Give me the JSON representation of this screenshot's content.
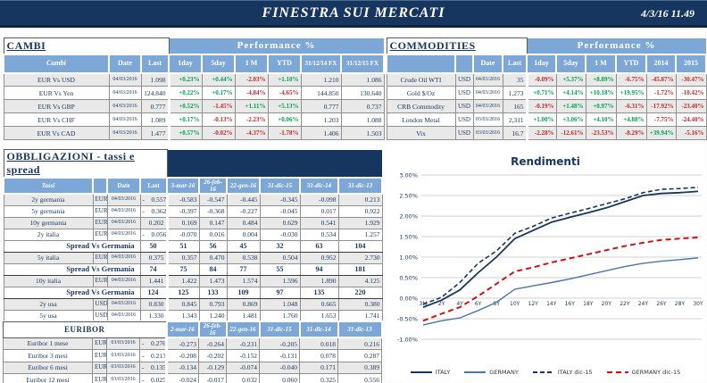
{
  "header": {
    "title": "FINESTRA SUI MERCATI",
    "datetime": "4/3/16 11.49"
  },
  "colors": {
    "navy": "#17365d",
    "titlebar": "#16365f",
    "header_blue": "#7da7d6",
    "row_shade": "#e9e9e9",
    "positive": "#00a050",
    "negative": "#c22727",
    "grid": "#d0d0d0",
    "germany_blue": "#4a76a8",
    "red_line": "#cc1414"
  },
  "cambi": {
    "title": "CAMBI",
    "perf_header": "Performance  %",
    "columns": [
      "Cambi",
      "Date",
      "Last",
      "1day",
      "5day",
      "1 M",
      "YTD",
      "31/12/14 FX",
      "31/12/15  FX"
    ],
    "rows": [
      {
        "name": "EUR Vs USD",
        "date": "04/03/2016",
        "last": "1.098",
        "perf": [
          "+0.23%",
          "+0.44%",
          "-2.03%",
          "+1.10%"
        ],
        "fx14": "1.210",
        "fx15": "1.086"
      },
      {
        "name": "EUR Vs Yen",
        "date": "04/03/2016",
        "last": "124.840",
        "perf": [
          "+0.22%",
          "+0.17%",
          "-4.84%",
          "-4.65%"
        ],
        "fx14": "144.850",
        "fx15": "130.640"
      },
      {
        "name": "EUR Vs GBP",
        "date": "04/03/2016",
        "last": "0.777",
        "perf": [
          "+0.52%",
          "-1.45%",
          "+1.11%",
          "+5.13%"
        ],
        "fx14": "0.777",
        "fx15": "0.737"
      },
      {
        "name": "EUR Vs CHF",
        "date": "04/03/2016",
        "last": "1.089",
        "perf": [
          "+0.17%",
          "-0.13%",
          "-2.23%",
          "+0.06%"
        ],
        "fx14": "1.203",
        "fx15": "1.088"
      },
      {
        "name": "EUR Vs CAD",
        "date": "04/03/2016",
        "last": "1.477",
        "perf": [
          "+0.57%",
          "-0.02%",
          "-4.37%",
          "-1.78%"
        ],
        "fx14": "1.406",
        "fx15": "1.503"
      }
    ]
  },
  "commodities": {
    "title": "COMMODITIES",
    "perf_header": "Performance  %",
    "columns": [
      "Date",
      "Last",
      "1day",
      "5day",
      "1 M",
      "YTD",
      "2014",
      "2015"
    ],
    "rows": [
      {
        "name": "Crude Oil WTI",
        "ccy": "USD",
        "date": "04/03/2016",
        "last": "35",
        "perf": [
          "-0.09%",
          "+5.37%",
          "+8.89%",
          "-6.75%",
          "-45.87%",
          "-30.47%"
        ]
      },
      {
        "name": "Gold $/Oz",
        "ccy": "USD",
        "date": "04/03/2016",
        "last": "1,273",
        "perf": [
          "+0.71%",
          "+4.14%",
          "+10.18%",
          "+19.95%",
          "-1.72%",
          "-10.42%"
        ]
      },
      {
        "name": "CRB Commodity",
        "ccy": "USD",
        "date": "04/03/2016",
        "last": "165",
        "perf": [
          "-0.19%",
          "+1.48%",
          "+0.97%",
          "-6.31%",
          "-17.92%",
          "-23.40%"
        ]
      },
      {
        "name": "London Metal",
        "ccy": "USD",
        "date": "03/03/2016",
        "last": "2,311",
        "perf": [
          "+1.00%",
          "+3.06%",
          "+4.10%",
          "+4.88%",
          "-7.75%",
          "-24.40%"
        ]
      },
      {
        "name": "Vix",
        "ccy": "USD",
        "date": "03/03/2016",
        "last": "16.7",
        "perf": [
          "-2.28%",
          "-12.61%",
          "-23.53%",
          "-8.29%",
          "+39.94%",
          "-5.16%"
        ]
      }
    ]
  },
  "obbligazioni": {
    "title": "OBBLIGAZIONI - tassi e spread",
    "columns": [
      "Tassi",
      "Date",
      "Last",
      "3-mar-16",
      "26-feb-16",
      "22-gen-16",
      "31-dic-15",
      "31-dic-14",
      "31-dic-13"
    ],
    "rows": [
      {
        "type": "data",
        "name": "2y germania",
        "ccy": "EUR",
        "date": "04/03/2016",
        "last": "-    0.557",
        "vals": [
          "-0.583",
          "-0.547",
          "-0.445",
          "-0.345",
          "-0.098",
          "0.213"
        ]
      },
      {
        "type": "data",
        "name": "5y germania",
        "ccy": "EUR",
        "date": "04/03/2016",
        "last": "-    0.362",
        "vals": [
          "-0.397",
          "-0.368",
          "-0.227",
          "-0.045",
          "0.017",
          "0.922"
        ]
      },
      {
        "type": "data",
        "name": "10y germania",
        "ccy": "EUR",
        "date": "04/03/2016",
        "last": "0.202",
        "vals": [
          "0.169",
          "0.147",
          "0.484",
          "0.629",
          "0.541",
          "1.929"
        ]
      },
      {
        "type": "data",
        "name": "2y italia",
        "ccy": "EUR",
        "date": "04/03/2016",
        "last": "-    0.056",
        "vals": [
          "-0.070",
          "0.016",
          "0.004",
          "-0.030",
          "0.534",
          "1.257"
        ]
      },
      {
        "type": "spread",
        "name": "Spread Vs Germania",
        "last": "50",
        "vals": [
          "51",
          "56",
          "45",
          "32",
          "63",
          "104"
        ]
      },
      {
        "type": "data",
        "name": "5y italia",
        "ccy": "EUR",
        "date": "04/03/2016",
        "last": "0.375",
        "vals": [
          "0.357",
          "0.470",
          "0.538",
          "0.504",
          "0.952",
          "2.730"
        ]
      },
      {
        "type": "spread",
        "name": "Spread Vs Germania",
        "last": "74",
        "vals": [
          "75",
          "84",
          "77",
          "55",
          "94",
          "181"
        ]
      },
      {
        "type": "data",
        "name": "10y italia",
        "ccy": "EUR",
        "date": "04/03/2016",
        "last": "1.441",
        "vals": [
          "1.422",
          "1.473",
          "1.574",
          "1.596",
          "1.890",
          "4.125"
        ]
      },
      {
        "type": "spread",
        "name": "Spread Vs Germania",
        "last": "124",
        "vals": [
          "125",
          "133",
          "109",
          "97",
          "135",
          "220"
        ]
      },
      {
        "type": "data",
        "name": "2y usa",
        "ccy": "USD",
        "date": "04/03/2016",
        "last": "0.830",
        "vals": [
          "0.845",
          "0.793",
          "0.869",
          "1.048",
          "0.665",
          "0.380"
        ]
      },
      {
        "type": "data",
        "name": "5y usa",
        "ccy": "USD",
        "date": "04/03/2016",
        "last": "1.330",
        "vals": [
          "1.343",
          "1.240",
          "1.481",
          "1.760",
          "1.653",
          "1.741"
        ]
      },
      {
        "type": "data",
        "name": "10y usa",
        "ccy": "USD",
        "date": "04/03/2016",
        "last": "1.830",
        "vals": [
          "1.83",
          "1.76",
          "2.05",
          "2.27",
          "2.17",
          "3.03"
        ]
      }
    ]
  },
  "euribor": {
    "title": "EURIBOR",
    "columns": [
      "2-mar-16",
      "26-feb-16",
      "22-gen-16",
      "31-dic-15",
      "31-dic-14",
      "31-dic-13"
    ],
    "rows": [
      {
        "name": "Euribor 1 mese",
        "ccy": "EUR",
        "date": "03/03/2016",
        "last": "-    0.276",
        "vals": [
          "-0.273",
          "-0.264",
          "-0.231",
          "-0.205",
          "0.018",
          "0.216"
        ]
      },
      {
        "name": "Euribor 3 mesi",
        "ccy": "EUR",
        "date": "03/03/2016",
        "last": "-    0.213",
        "vals": [
          "-0.208",
          "-0.202",
          "-0.152",
          "-0.131",
          "0.078",
          "0.287"
        ]
      },
      {
        "name": "Euribor 6 mesi",
        "ccy": "EUR",
        "date": "03/03/2016",
        "last": "-    0.135",
        "vals": [
          "-0.134",
          "-0.129",
          "-0.074",
          "-0.040",
          "0.171",
          "0.389"
        ]
      },
      {
        "name": "Euribor 12 mesi",
        "ccy": "EUR",
        "date": "03/03/2016",
        "last": "-    0.025",
        "vals": [
          "-0.024",
          "-0.017",
          "0.032",
          "0.060",
          "0.325",
          "0.556"
        ]
      }
    ]
  },
  "chart_data": {
    "type": "line",
    "title": "Rendimenti",
    "x_labels": [
      "3M",
      "2Y",
      "4Y",
      "6Y",
      "8Y",
      "10Y",
      "12Y",
      "14Y",
      "16Y",
      "18Y",
      "20Y",
      "22Y",
      "24Y",
      "26Y",
      "28Y",
      "30Y"
    ],
    "y_ticks": [
      "3.00%",
      "2.50%",
      "2.00%",
      "1.50%",
      "1.00%",
      "0.50%",
      "0.00%",
      "-0.50%",
      "-1.00%"
    ],
    "ylim": [
      -1.0,
      3.0
    ],
    "grid": true,
    "legend_position": "bottom",
    "x_axis_cross": 0.0,
    "series": [
      {
        "name": "ITALY",
        "color": "#17365d",
        "dash": "solid",
        "stroke_width": 1.8,
        "dash_pattern": "",
        "values": [
          -0.22,
          -0.05,
          0.2,
          0.62,
          1.0,
          1.45,
          1.65,
          1.85,
          1.97,
          2.08,
          2.2,
          2.35,
          2.5,
          2.55,
          2.57,
          2.6
        ]
      },
      {
        "name": "GERMANY",
        "color": "#4a76a8",
        "dash": "solid",
        "stroke_width": 1.4,
        "dash_pattern": "",
        "values": [
          -0.65,
          -0.55,
          -0.48,
          -0.3,
          -0.1,
          0.22,
          0.3,
          0.38,
          0.47,
          0.57,
          0.67,
          0.77,
          0.85,
          0.9,
          0.94,
          0.98
        ]
      },
      {
        "name": "ITALY dic-15",
        "color": "#17365d",
        "dash": "dashed",
        "stroke_width": 1.6,
        "dash_pattern": "5,3",
        "values": [
          -0.15,
          0.02,
          0.38,
          0.85,
          1.15,
          1.58,
          1.75,
          1.95,
          2.07,
          2.18,
          2.3,
          2.42,
          2.57,
          2.65,
          2.67,
          2.7
        ]
      },
      {
        "name": "GERMANY dic-15",
        "color": "#cc1414",
        "dash": "dashed",
        "stroke_width": 2.0,
        "dash_pattern": "6,4",
        "values": [
          -0.55,
          -0.38,
          -0.22,
          0.05,
          0.35,
          0.65,
          0.75,
          0.87,
          0.97,
          1.07,
          1.17,
          1.27,
          1.35,
          1.42,
          1.45,
          1.48
        ]
      }
    ]
  }
}
